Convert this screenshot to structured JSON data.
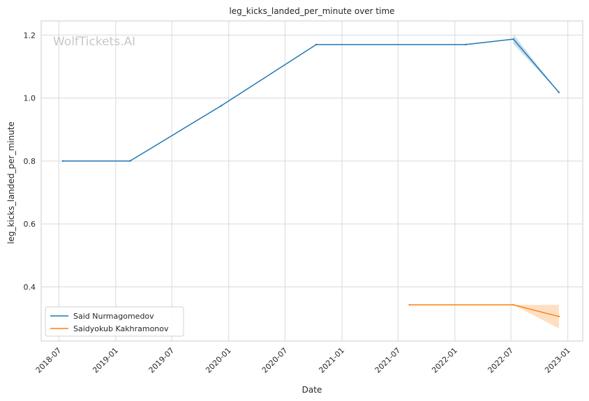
{
  "chart_data": {
    "type": "line",
    "title": "leg_kicks_landed_per_minute over time",
    "xlabel": "Date",
    "ylabel": "leg_kicks_landed_per_minute",
    "x_ticks": [
      "2018-07",
      "2019-01",
      "2019-07",
      "2020-01",
      "2020-07",
      "2021-01",
      "2021-07",
      "2022-01",
      "2022-07",
      "2023-01"
    ],
    "y_ticks": [
      "0.4",
      "0.6",
      "0.8",
      "1.0",
      "1.2"
    ],
    "xlim": [
      "2018-05-05",
      "2023-02-18"
    ],
    "ylim": [
      0.228,
      1.245
    ],
    "grid": true,
    "legend_position": "lower-left",
    "watermark": "WolfTickets.AI",
    "series": [
      {
        "name": "Said Nurmagomedov",
        "color": "#1f77b4",
        "x": [
          "2018-07-14",
          "2019-02-16",
          "2019-12-07",
          "2020-10-10",
          "2022-02-05",
          "2022-07-09",
          "2022-12-03"
        ],
        "y": [
          0.8,
          0.8,
          0.975,
          1.17,
          1.17,
          1.187,
          1.018
        ],
        "ci_x": [
          "2022-07-09",
          "2022-12-03"
        ],
        "ci_lower": [
          1.172,
          1.018
        ],
        "ci_upper": [
          1.202,
          1.018
        ]
      },
      {
        "name": "Saidyokub Kakhramonov",
        "color": "#ff7f0e",
        "x": [
          "2021-08-07",
          "2022-07-09",
          "2022-12-03"
        ],
        "y": [
          0.343,
          0.343,
          0.306
        ],
        "ci_x": [
          "2022-07-09",
          "2022-12-03"
        ],
        "ci_lower": [
          0.343,
          0.268
        ],
        "ci_upper": [
          0.343,
          0.343
        ]
      }
    ]
  }
}
